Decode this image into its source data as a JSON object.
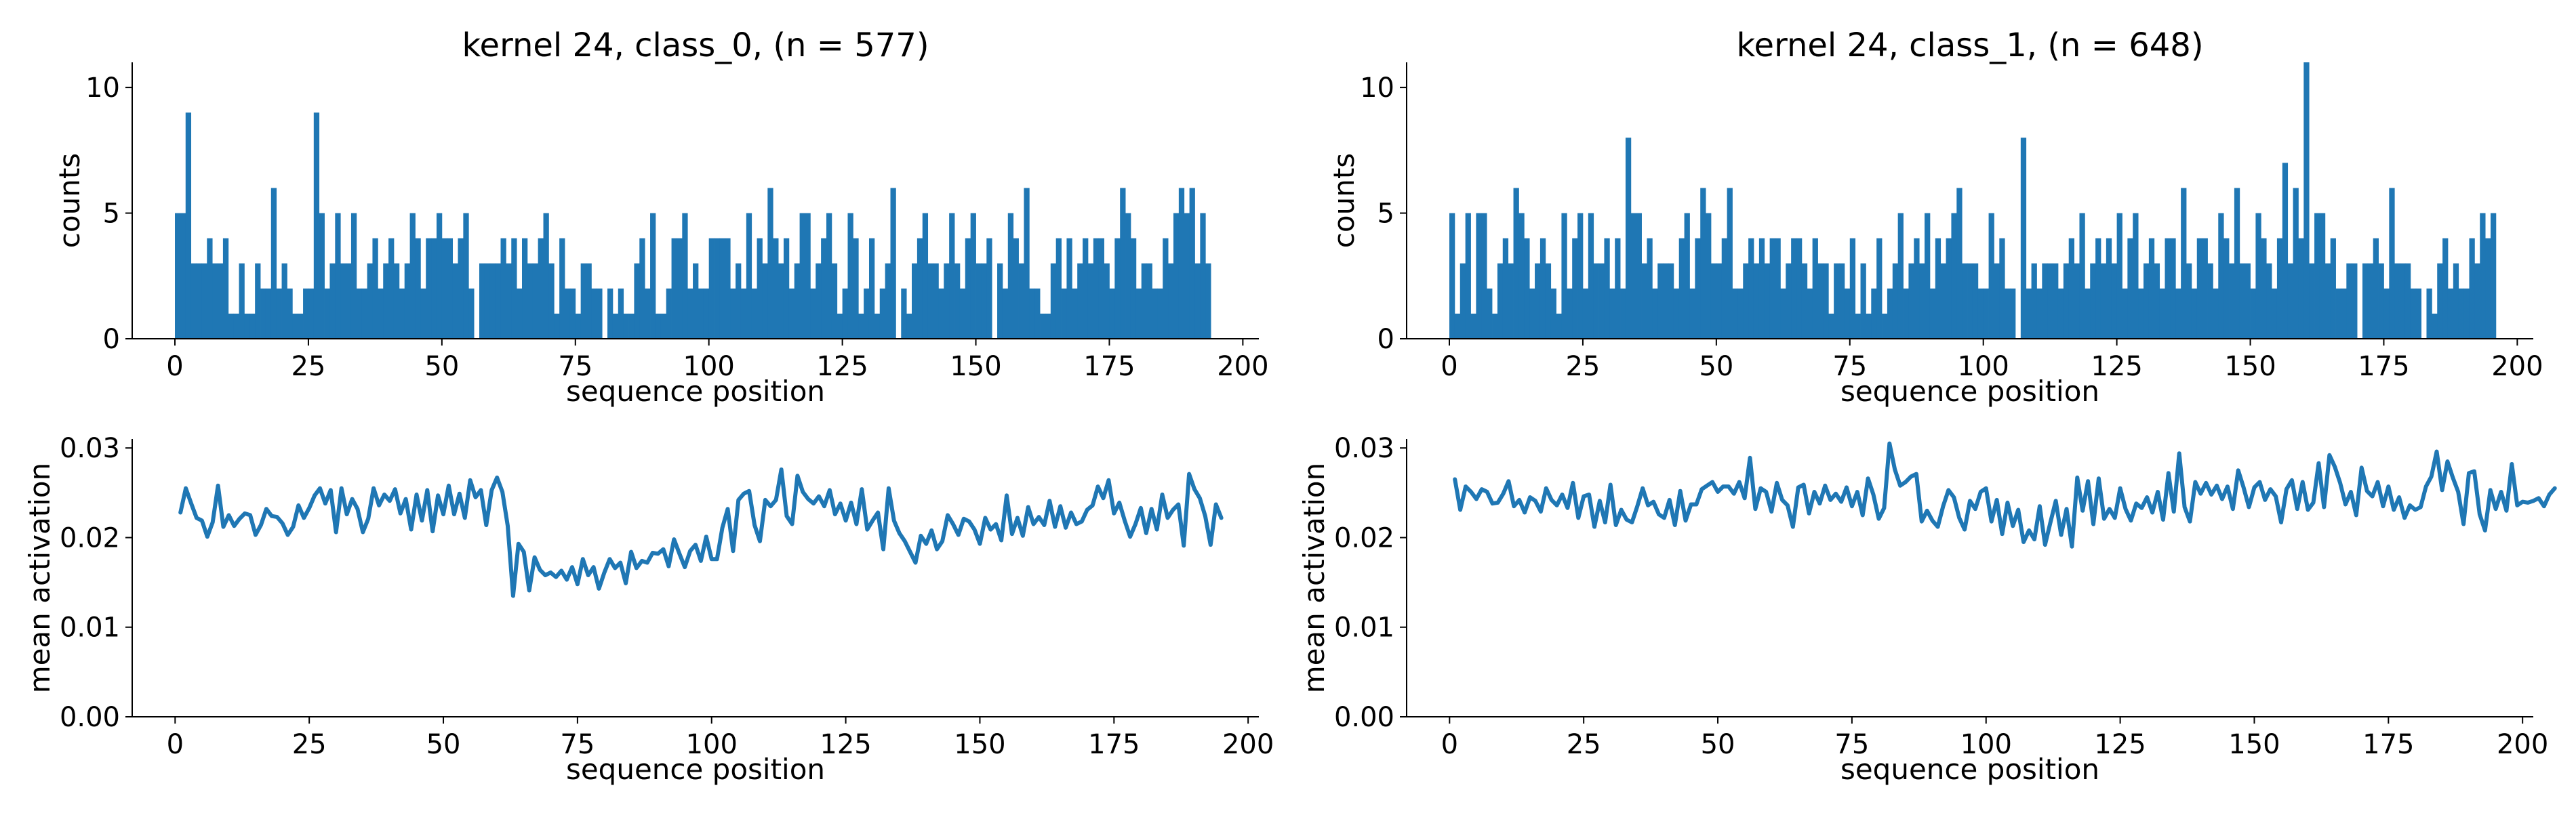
{
  "chart_data": [
    {
      "type": "bar",
      "panel": "class_0-counts",
      "title": "kernel 24, class_0, (n = 577)",
      "xlabel": "sequence position",
      "ylabel": "counts",
      "xlim": [
        -8,
        203
      ],
      "ylim": [
        0,
        11
      ],
      "xticks": [
        0,
        25,
        50,
        75,
        100,
        125,
        150,
        175,
        200
      ],
      "yticks": [
        0,
        5,
        10
      ],
      "bins_start": 0,
      "bin_width": 1,
      "values": [
        5,
        5,
        9,
        3,
        3,
        3,
        4,
        3,
        3,
        4,
        1,
        1,
        3,
        1,
        1,
        3,
        2,
        2,
        6,
        2,
        3,
        2,
        1,
        1,
        2,
        2,
        9,
        5,
        2,
        3,
        5,
        3,
        3,
        5,
        2,
        2,
        3,
        4,
        2,
        3,
        4,
        3,
        2,
        3,
        5,
        4,
        2,
        4,
        4,
        5,
        4,
        4,
        3,
        4,
        5,
        2,
        0,
        3,
        3,
        3,
        3,
        4,
        3,
        4,
        2,
        4,
        3,
        3,
        4,
        5,
        3,
        1,
        4,
        2,
        2,
        1,
        3,
        3,
        2,
        2,
        0,
        2,
        1,
        2,
        1,
        1,
        3,
        4,
        2,
        5,
        1,
        1,
        2,
        4,
        4,
        5,
        2,
        3,
        2,
        2,
        4,
        4,
        4,
        4,
        2,
        3,
        2,
        5,
        2,
        4,
        3,
        6,
        4,
        3,
        4,
        2,
        3,
        5,
        5,
        2,
        3,
        4,
        5,
        3,
        1,
        2,
        5,
        4,
        1,
        2,
        4,
        1,
        2,
        3,
        6,
        0,
        2,
        1,
        3,
        4,
        5,
        3,
        3,
        2,
        3,
        5,
        3,
        2,
        4,
        5,
        3,
        3,
        4,
        0,
        3,
        2,
        5,
        4,
        3,
        6,
        2,
        2,
        1,
        1,
        3,
        4,
        2,
        4,
        2,
        3,
        4,
        3,
        4,
        4,
        3,
        2,
        4,
        6,
        5,
        4,
        2,
        3,
        3,
        2,
        2,
        4,
        3,
        5,
        6,
        5,
        6,
        3,
        5,
        3,
        0
      ]
    },
    {
      "type": "bar",
      "panel": "class_1-counts",
      "title": "kernel 24, class_1, (n = 648)",
      "xlabel": "sequence position",
      "ylabel": "counts",
      "xlim": [
        -8,
        203
      ],
      "ylim": [
        0,
        11
      ],
      "xticks": [
        0,
        25,
        50,
        75,
        100,
        125,
        150,
        175,
        200
      ],
      "yticks": [
        0,
        5,
        10
      ],
      "bins_start": 0,
      "bin_width": 1,
      "values": [
        5,
        1,
        3,
        5,
        1,
        5,
        5,
        2,
        1,
        3,
        4,
        3,
        6,
        5,
        4,
        2,
        3,
        4,
        3,
        2,
        1,
        5,
        2,
        4,
        5,
        2,
        5,
        3,
        3,
        4,
        2,
        4,
        2,
        8,
        5,
        5,
        3,
        4,
        2,
        3,
        3,
        3,
        2,
        4,
        5,
        2,
        4,
        6,
        5,
        3,
        3,
        4,
        6,
        2,
        2,
        3,
        4,
        3,
        4,
        3,
        4,
        4,
        2,
        3,
        4,
        4,
        3,
        2,
        4,
        3,
        3,
        1,
        3,
        3,
        2,
        4,
        1,
        3,
        1,
        2,
        4,
        1,
        2,
        3,
        5,
        2,
        3,
        4,
        3,
        5,
        2,
        4,
        3,
        4,
        5,
        6,
        3,
        3,
        3,
        2,
        2,
        5,
        3,
        4,
        2,
        2,
        0,
        8,
        2,
        3,
        2,
        3,
        3,
        3,
        2,
        3,
        4,
        3,
        5,
        2,
        3,
        4,
        3,
        4,
        3,
        5,
        2,
        4,
        5,
        2,
        3,
        4,
        3,
        2,
        4,
        4,
        2,
        6,
        3,
        2,
        4,
        4,
        3,
        2,
        5,
        4,
        3,
        6,
        3,
        3,
        2,
        5,
        4,
        3,
        2,
        4,
        7,
        3,
        6,
        4,
        11,
        3,
        5,
        5,
        3,
        4,
        2,
        2,
        3,
        3,
        0,
        3,
        3,
        4,
        3,
        2,
        6,
        3,
        3,
        3,
        2,
        2,
        0,
        2,
        1,
        3,
        4,
        2,
        3,
        2,
        2,
        4,
        3,
        5,
        4,
        5,
        0
      ]
    },
    {
      "type": "line",
      "panel": "class_0-mean-activation",
      "xlabel": "sequence position",
      "ylabel": "mean activation",
      "xlim": [
        -8,
        202
      ],
      "ylim": [
        0,
        0.031
      ],
      "xticks": [
        0,
        25,
        50,
        75,
        100,
        125,
        150,
        175,
        200
      ],
      "yticks": [
        0.0,
        0.01,
        0.02,
        0.03
      ],
      "x_start": 1,
      "color": "#1f77b4",
      "y": [
        0.0228,
        0.0255,
        0.0238,
        0.0222,
        0.0219,
        0.0201,
        0.0217,
        0.0258,
        0.0212,
        0.0225,
        0.0213,
        0.0221,
        0.0227,
        0.0225,
        0.0203,
        0.0214,
        0.0232,
        0.0224,
        0.0223,
        0.0216,
        0.0203,
        0.0212,
        0.0236,
        0.0222,
        0.0233,
        0.0247,
        0.0255,
        0.0238,
        0.0253,
        0.0206,
        0.0255,
        0.0226,
        0.0243,
        0.0232,
        0.0206,
        0.0221,
        0.0255,
        0.0236,
        0.0248,
        0.0241,
        0.0254,
        0.0227,
        0.0243,
        0.0209,
        0.0248,
        0.0219,
        0.0253,
        0.0207,
        0.0247,
        0.0226,
        0.0258,
        0.0226,
        0.0249,
        0.0222,
        0.0264,
        0.0245,
        0.0253,
        0.0214,
        0.0253,
        0.0267,
        0.0251,
        0.0213,
        0.0135,
        0.0193,
        0.0184,
        0.0141,
        0.0178,
        0.0164,
        0.0158,
        0.0161,
        0.0156,
        0.0163,
        0.0153,
        0.0167,
        0.0148,
        0.0176,
        0.0158,
        0.0167,
        0.0143,
        0.0161,
        0.0176,
        0.0166,
        0.0172,
        0.0149,
        0.0184,
        0.0166,
        0.0174,
        0.0172,
        0.0183,
        0.0182,
        0.0187,
        0.0168,
        0.0198,
        0.0182,
        0.0167,
        0.0185,
        0.0192,
        0.0174,
        0.0201,
        0.0176,
        0.0176,
        0.0211,
        0.0232,
        0.0185,
        0.0242,
        0.0249,
        0.0252,
        0.0214,
        0.0196,
        0.0242,
        0.0235,
        0.0242,
        0.0276,
        0.0224,
        0.0215,
        0.0269,
        0.0251,
        0.0243,
        0.0238,
        0.0246,
        0.0235,
        0.0253,
        0.0226,
        0.0238,
        0.0219,
        0.0239,
        0.0215,
        0.0254,
        0.0209,
        0.0219,
        0.0228,
        0.0187,
        0.0255,
        0.0219,
        0.0205,
        0.0196,
        0.0184,
        0.0172,
        0.0202,
        0.0193,
        0.0208,
        0.0187,
        0.0196,
        0.0225,
        0.0215,
        0.0203,
        0.0221,
        0.0218,
        0.0209,
        0.0193,
        0.0222,
        0.0209,
        0.0215,
        0.0197,
        0.0247,
        0.0204,
        0.0222,
        0.0202,
        0.0234,
        0.0215,
        0.0223,
        0.0214,
        0.0241,
        0.0212,
        0.0235,
        0.0211,
        0.0228,
        0.0215,
        0.0218,
        0.0231,
        0.0236,
        0.0257,
        0.0244,
        0.0264,
        0.0227,
        0.0239,
        0.0219,
        0.0201,
        0.0215,
        0.0233,
        0.0205,
        0.0232,
        0.0209,
        0.0248,
        0.0222,
        0.0231,
        0.0237,
        0.0191,
        0.0271,
        0.0254,
        0.0244,
        0.0224,
        0.0192,
        0.0237,
        0.0222
      ]
    },
    {
      "type": "line",
      "panel": "class_1-mean-activation",
      "xlabel": "sequence position",
      "ylabel": "mean activation",
      "xlim": [
        -8,
        202
      ],
      "ylim": [
        0,
        0.031
      ],
      "xticks": [
        0,
        25,
        50,
        75,
        100,
        125,
        150,
        175,
        200
      ],
      "yticks": [
        0.0,
        0.01,
        0.02,
        0.03
      ],
      "x_start": 1,
      "color": "#1f77b4",
      "y": [
        0.0265,
        0.0231,
        0.0257,
        0.0251,
        0.0243,
        0.0254,
        0.0251,
        0.0238,
        0.0239,
        0.0249,
        0.0263,
        0.0235,
        0.0242,
        0.0228,
        0.0245,
        0.0241,
        0.0229,
        0.0255,
        0.0242,
        0.0236,
        0.0248,
        0.0233,
        0.0261,
        0.0222,
        0.0246,
        0.0248,
        0.0212,
        0.0241,
        0.0217,
        0.0259,
        0.0214,
        0.0231,
        0.022,
        0.0217,
        0.0235,
        0.0255,
        0.0236,
        0.024,
        0.0226,
        0.0222,
        0.0242,
        0.0214,
        0.0252,
        0.0219,
        0.0237,
        0.0237,
        0.0254,
        0.0258,
        0.0262,
        0.0251,
        0.0257,
        0.0257,
        0.0249,
        0.0262,
        0.0244,
        0.0289,
        0.0232,
        0.0255,
        0.0251,
        0.0229,
        0.0261,
        0.0242,
        0.0236,
        0.0212,
        0.0256,
        0.0259,
        0.0227,
        0.0251,
        0.0238,
        0.0258,
        0.0242,
        0.0249,
        0.024,
        0.0256,
        0.0235,
        0.0251,
        0.0225,
        0.0266,
        0.0248,
        0.0221,
        0.0233,
        0.0305,
        0.0276,
        0.0258,
        0.0262,
        0.0268,
        0.0271,
        0.0218,
        0.023,
        0.0219,
        0.0212,
        0.0235,
        0.0253,
        0.0245,
        0.0222,
        0.0209,
        0.0241,
        0.0232,
        0.0251,
        0.0255,
        0.0218,
        0.0242,
        0.0204,
        0.0239,
        0.0213,
        0.0231,
        0.0195,
        0.0208,
        0.0198,
        0.0235,
        0.0192,
        0.0217,
        0.0241,
        0.0203,
        0.0232,
        0.019,
        0.0267,
        0.023,
        0.0263,
        0.0215,
        0.0266,
        0.0221,
        0.0232,
        0.0222,
        0.0255,
        0.0232,
        0.0219,
        0.0238,
        0.0233,
        0.0245,
        0.0228,
        0.0251,
        0.022,
        0.0272,
        0.0229,
        0.0294,
        0.0234,
        0.0218,
        0.0262,
        0.0249,
        0.0261,
        0.0248,
        0.0258,
        0.0243,
        0.0257,
        0.0232,
        0.0275,
        0.0256,
        0.0234,
        0.0256,
        0.0262,
        0.0242,
        0.0254,
        0.0246,
        0.0217,
        0.0254,
        0.0264,
        0.0232,
        0.0262,
        0.0231,
        0.0239,
        0.0283,
        0.0234,
        0.0292,
        0.0279,
        0.0261,
        0.0237,
        0.0251,
        0.0225,
        0.0278,
        0.0252,
        0.0246,
        0.0262,
        0.0235,
        0.0257,
        0.0231,
        0.0245,
        0.0222,
        0.0236,
        0.0231,
        0.0234,
        0.0257,
        0.0268,
        0.0296,
        0.0253,
        0.0285,
        0.0267,
        0.0251,
        0.0215,
        0.0272,
        0.0274,
        0.0226,
        0.0208,
        0.0253,
        0.0232,
        0.0251,
        0.023,
        0.0282,
        0.0236,
        0.024,
        0.0239,
        0.0241,
        0.0244,
        0.0235,
        0.0248,
        0.0255
      ]
    }
  ]
}
